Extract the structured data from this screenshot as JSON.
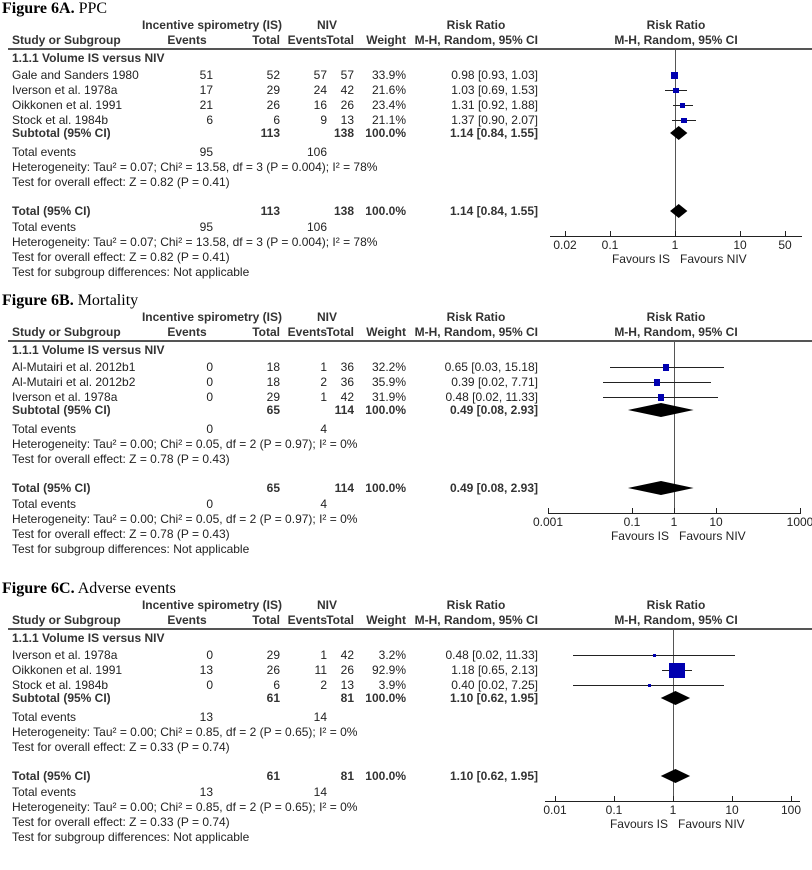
{
  "headers": {
    "group1": "Incentive spirometry (IS)",
    "group2": "NIV",
    "rr": "Risk Ratio",
    "study": "Study or Subgroup",
    "events": "Events",
    "total": "Total",
    "weight": "Weight",
    "method": "M-H, Random, 95% CI",
    "plot_rr": "Risk Ratio",
    "plot_method": "M-H, Random, 95% CI"
  },
  "colors": {
    "square": "#0000b0",
    "diamond": "#000000",
    "rule": "#555555"
  },
  "chart_data": [
    {
      "type": "forest",
      "figure_label": "Figure 6A.",
      "title": "PPC",
      "subgroup": "1.1.1 Volume IS versus NIV",
      "studies": [
        {
          "name": "Gale and Sanders 1980",
          "is_events": "51",
          "is_total": "52",
          "niv_events": "57",
          "niv_total": "57",
          "weight": "33.9%",
          "weight_value": 33.9,
          "rr_text": "0.98 [0.93, 1.03]",
          "rr": 0.98,
          "lo": 0.93,
          "hi": 1.03
        },
        {
          "name": "Iverson et al. 1978a",
          "is_events": "17",
          "is_total": "29",
          "niv_events": "24",
          "niv_total": "42",
          "weight": "21.6%",
          "weight_value": 21.6,
          "rr_text": "1.03 [0.69, 1.53]",
          "rr": 1.03,
          "lo": 0.69,
          "hi": 1.53
        },
        {
          "name": "Oikkonen et al. 1991",
          "is_events": "21",
          "is_total": "26",
          "niv_events": "16",
          "niv_total": "26",
          "weight": "23.4%",
          "weight_value": 23.4,
          "rr_text": "1.31 [0.92, 1.88]",
          "rr": 1.31,
          "lo": 0.92,
          "hi": 1.88
        },
        {
          "name": "Stock et al. 1984b",
          "is_events": "6",
          "is_total": "6",
          "niv_events": "9",
          "niv_total": "13",
          "weight": "21.1%",
          "weight_value": 21.1,
          "rr_text": "1.37 [0.90, 2.07]",
          "rr": 1.37,
          "lo": 0.9,
          "hi": 2.07
        }
      ],
      "subtotal": {
        "label": "Subtotal (95% CI)",
        "is_total": "113",
        "niv_total": "138",
        "weight": "100.0%",
        "rr_text": "1.14 [0.84, 1.55]",
        "rr": 1.14,
        "lo": 0.84,
        "hi": 1.55
      },
      "subtotal_events": {
        "label": "Total events",
        "is": "95",
        "niv": "106"
      },
      "subtotal_heterogeneity": "Heterogeneity: Tau² = 0.07; Chi² = 13.58, df = 3 (P = 0.004); I² = 78%",
      "subtotal_effect": "Test for overall effect: Z = 0.82 (P = 0.41)",
      "total": {
        "label": "Total (95% CI)",
        "is_total": "113",
        "niv_total": "138",
        "weight": "100.0%",
        "rr_text": "1.14 [0.84, 1.55]",
        "rr": 1.14,
        "lo": 0.84,
        "hi": 1.55
      },
      "total_events": {
        "label": "Total events",
        "is": "95",
        "niv": "106"
      },
      "total_heterogeneity": "Heterogeneity: Tau² = 0.07; Chi² = 13.58, df = 3 (P = 0.004); I² = 78%",
      "total_effect": "Test for overall effect: Z = 0.82 (P = 0.41)",
      "subgroup_diff": "Test for subgroup differences: Not applicable",
      "x_scale": "log",
      "xlim": [
        0.02,
        50
      ],
      "ticks": [
        {
          "value": 0.02,
          "label": "0.02"
        },
        {
          "value": 0.1,
          "label": "0.1"
        },
        {
          "value": 1,
          "label": "1"
        },
        {
          "value": 10,
          "label": "10"
        },
        {
          "value": 50,
          "label": "50"
        }
      ],
      "favours_left": "Favours IS",
      "favours_right": "Favours NIV"
    },
    {
      "type": "forest",
      "figure_label": "Figure 6B.",
      "title": "Mortality",
      "subgroup": "1.1.1 Volume IS versus NIV",
      "studies": [
        {
          "name": "Al-Mutairi et al. 2012b1",
          "is_events": "0",
          "is_total": "18",
          "niv_events": "1",
          "niv_total": "36",
          "weight": "32.2%",
          "weight_value": 32.2,
          "rr_text": "0.65 [0.03, 15.18]",
          "rr": 0.65,
          "lo": 0.03,
          "hi": 15.18
        },
        {
          "name": "Al-Mutairi et al. 2012b2",
          "is_events": "0",
          "is_total": "18",
          "niv_events": "2",
          "niv_total": "36",
          "weight": "35.9%",
          "weight_value": 35.9,
          "rr_text": "0.39 [0.02, 7.71]",
          "rr": 0.39,
          "lo": 0.02,
          "hi": 7.71
        },
        {
          "name": "Iverson et al. 1978a",
          "is_events": "0",
          "is_total": "29",
          "niv_events": "1",
          "niv_total": "42",
          "weight": "31.9%",
          "weight_value": 31.9,
          "rr_text": "0.48 [0.02, 11.33]",
          "rr": 0.48,
          "lo": 0.02,
          "hi": 11.33
        }
      ],
      "subtotal": {
        "label": "Subtotal (95% CI)",
        "is_total": "65",
        "niv_total": "114",
        "weight": "100.0%",
        "rr_text": "0.49 [0.08, 2.93]",
        "rr": 0.49,
        "lo": 0.08,
        "hi": 2.93
      },
      "subtotal_events": {
        "label": "Total events",
        "is": "0",
        "niv": "4"
      },
      "subtotal_heterogeneity": "Heterogeneity: Tau² = 0.00; Chi² = 0.05, df = 2 (P = 0.97); I² = 0%",
      "subtotal_effect": "Test for overall effect: Z = 0.78 (P = 0.43)",
      "total": {
        "label": "Total (95% CI)",
        "is_total": "65",
        "niv_total": "114",
        "weight": "100.0%",
        "rr_text": "0.49 [0.08, 2.93]",
        "rr": 0.49,
        "lo": 0.08,
        "hi": 2.93
      },
      "total_events": {
        "label": "Total events",
        "is": "0",
        "niv": "4"
      },
      "total_heterogeneity": "Heterogeneity: Tau² = 0.00; Chi² = 0.05, df = 2 (P = 0.97); I² = 0%",
      "total_effect": "Test for overall effect: Z = 0.78 (P = 0.43)",
      "subgroup_diff": "Test for subgroup differences: Not applicable",
      "x_scale": "log",
      "xlim": [
        0.001,
        1000
      ],
      "ticks": [
        {
          "value": 0.001,
          "label": "0.001"
        },
        {
          "value": 0.1,
          "label": "0.1"
        },
        {
          "value": 1,
          "label": "1"
        },
        {
          "value": 10,
          "label": "10"
        },
        {
          "value": 1000,
          "label": "1000"
        }
      ],
      "favours_left": "Favours IS",
      "favours_right": "Favours NIV"
    },
    {
      "type": "forest",
      "figure_label": "Figure 6C.",
      "title": "Adverse events",
      "subgroup": "1.1.1 Volume IS versus NIV",
      "studies": [
        {
          "name": "Iverson et al. 1978a",
          "is_events": "0",
          "is_total": "29",
          "niv_events": "1",
          "niv_total": "42",
          "weight": "3.2%",
          "weight_value": 3.2,
          "rr_text": "0.48 [0.02, 11.33]",
          "rr": 0.48,
          "lo": 0.02,
          "hi": 11.33
        },
        {
          "name": "Oikkonen et al. 1991",
          "is_events": "13",
          "is_total": "26",
          "niv_events": "11",
          "niv_total": "26",
          "weight": "92.9%",
          "weight_value": 92.9,
          "rr_text": "1.18 [0.65, 2.13]",
          "rr": 1.18,
          "lo": 0.65,
          "hi": 2.13
        },
        {
          "name": "Stock et al. 1984b",
          "is_events": "0",
          "is_total": "6",
          "niv_events": "2",
          "niv_total": "13",
          "weight": "3.9%",
          "weight_value": 3.9,
          "rr_text": "0.40 [0.02, 7.25]",
          "rr": 0.4,
          "lo": 0.02,
          "hi": 7.25
        }
      ],
      "subtotal": {
        "label": "Subtotal (95% CI)",
        "is_total": "61",
        "niv_total": "81",
        "weight": "100.0%",
        "rr_text": "1.10 [0.62, 1.95]",
        "rr": 1.1,
        "lo": 0.62,
        "hi": 1.95
      },
      "subtotal_events": {
        "label": "Total events",
        "is": "13",
        "niv": "14"
      },
      "subtotal_heterogeneity": "Heterogeneity: Tau² = 0.00; Chi² = 0.85, df = 2 (P = 0.65); I² = 0%",
      "subtotal_effect": "Test for overall effect: Z = 0.33 (P = 0.74)",
      "total": {
        "label": "Total (95% CI)",
        "is_total": "61",
        "niv_total": "81",
        "weight": "100.0%",
        "rr_text": "1.10 [0.62, 1.95]",
        "rr": 1.1,
        "lo": 0.62,
        "hi": 1.95
      },
      "total_events": {
        "label": "Total events",
        "is": "13",
        "niv": "14"
      },
      "total_heterogeneity": "Heterogeneity: Tau² = 0.00; Chi² = 0.85, df = 2 (P = 0.65); I² = 0%",
      "total_effect": "Test for overall effect: Z = 0.33 (P = 0.74)",
      "subgroup_diff": "Test for subgroup differences: Not applicable",
      "x_scale": "log",
      "xlim": [
        0.01,
        100
      ],
      "ticks": [
        {
          "value": 0.01,
          "label": "0.01"
        },
        {
          "value": 0.1,
          "label": "0.1"
        },
        {
          "value": 1,
          "label": "1"
        },
        {
          "value": 10,
          "label": "10"
        },
        {
          "value": 100,
          "label": "100"
        }
      ],
      "favours_left": "Favours IS",
      "favours_right": "Favours NIV"
    }
  ]
}
